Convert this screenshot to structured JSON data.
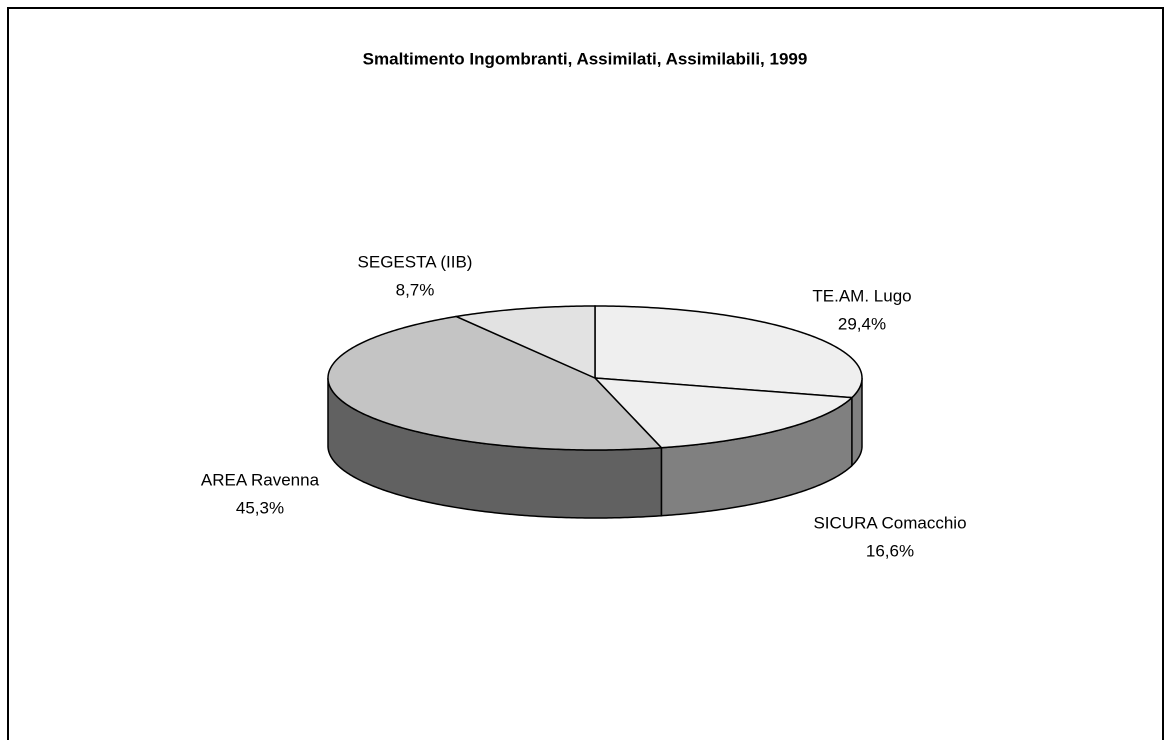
{
  "chart_data": {
    "type": "pie3d",
    "title": "Smaltimento Ingombranti, Assimilati, Assimilabili, 1999",
    "categories": [
      "TE.AM. Lugo",
      "SICURA Comacchio",
      "AREA Ravenna",
      "SEGESTA (IIB)"
    ],
    "values": [
      29.4,
      16.6,
      45.3,
      8.7
    ],
    "value_labels": [
      "29,4%",
      "16,6%",
      "45,3%",
      "8,7%"
    ],
    "colors": [
      "#efefef",
      "#efefef",
      "#c4c4c4",
      "#e2e2e2"
    ],
    "side_colors": [
      "#808080",
      "#808080",
      "#616161",
      "#9a9a9a"
    ]
  }
}
